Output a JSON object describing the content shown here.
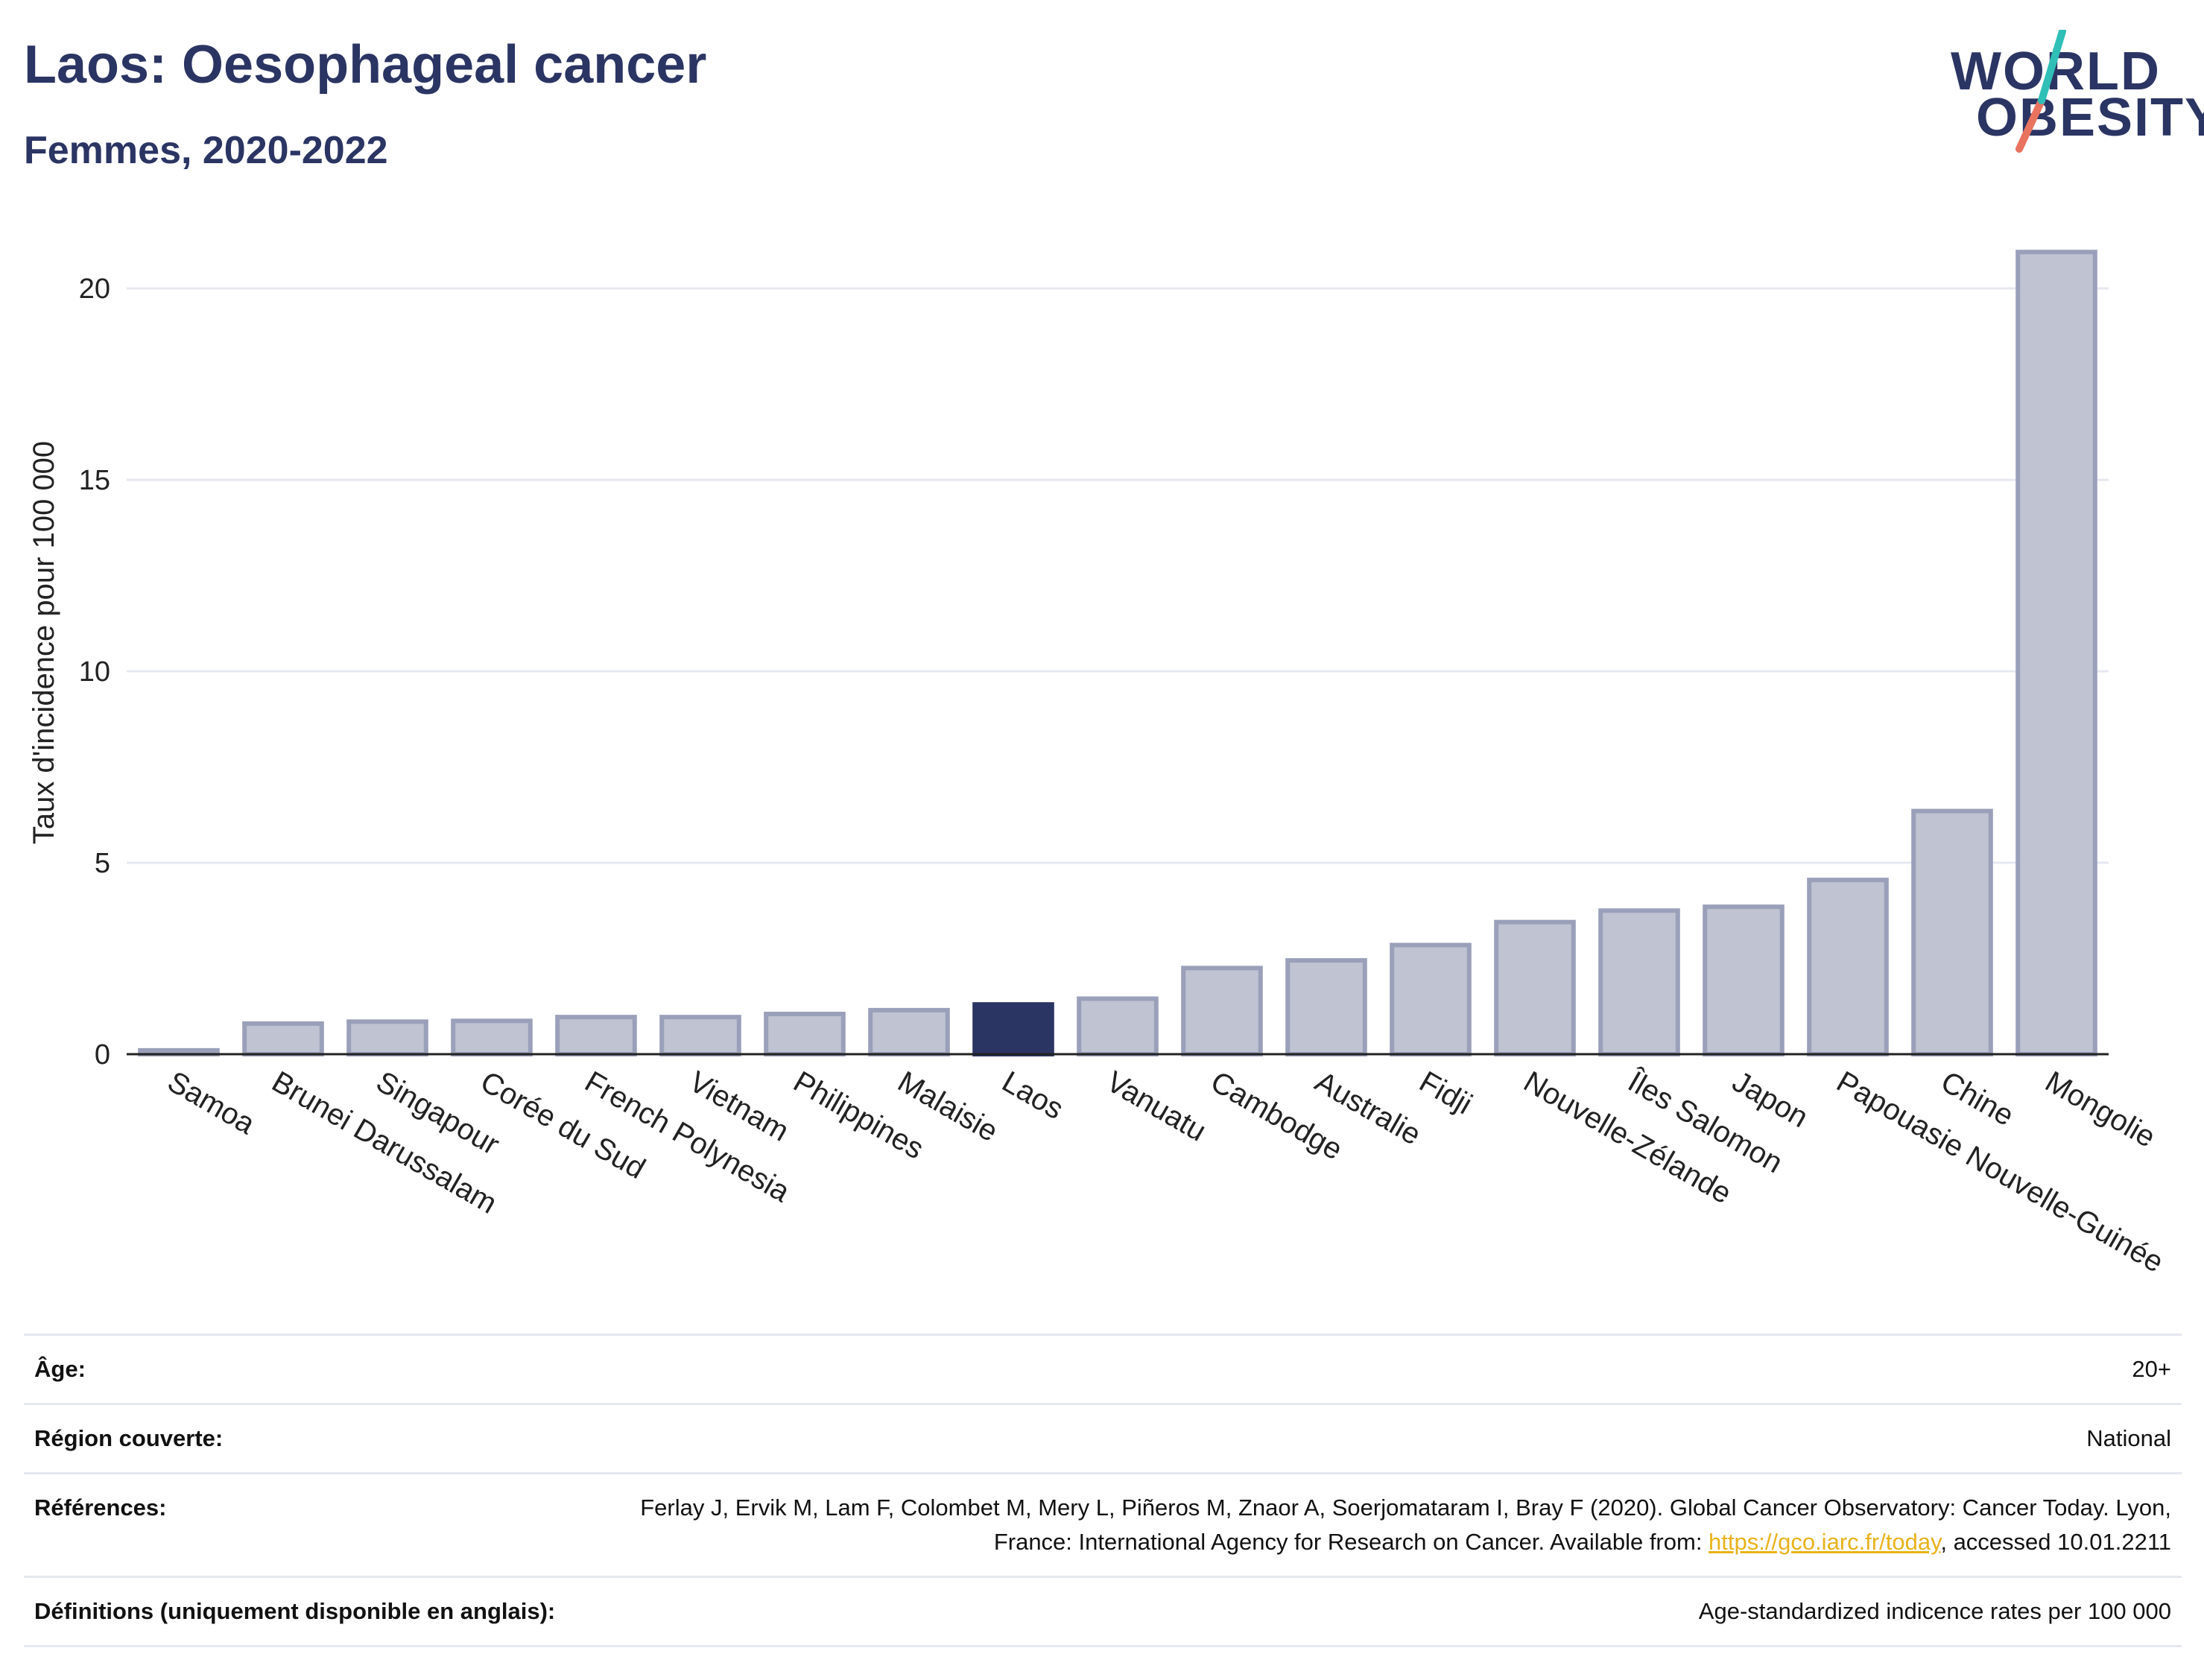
{
  "header": {
    "title": "Laos: Oesophageal cancer",
    "subtitle": "Femmes, 2020-2022",
    "logo_line1": "WORLD",
    "logo_line2": "OBESITY"
  },
  "chart_data": {
    "type": "bar",
    "ylabel": "Taux d'incidence pour 100 000",
    "ylim": [
      0,
      21.5
    ],
    "yticks": [
      0,
      5,
      10,
      15,
      20
    ],
    "grid": true,
    "highlight": "Laos",
    "categories": [
      "Samoa",
      "Brunei Darussalam",
      "Singapour",
      "Corée du Sud",
      "French Polynesia",
      "Vietnam",
      "Philippines",
      "Malaisie",
      "Laos",
      "Vanuatu",
      "Cambodge",
      "Australie",
      "Fidji",
      "Nouvelle-Zélande",
      "Îles Salomon",
      "Japon",
      "Papouasie Nouvelle-Guinée",
      "Chine",
      "Mongolie"
    ],
    "values": [
      0.1,
      0.8,
      0.85,
      0.87,
      0.97,
      0.97,
      1.05,
      1.15,
      1.3,
      1.45,
      2.25,
      2.45,
      2.85,
      3.45,
      3.75,
      3.85,
      4.55,
      6.35,
      20.95
    ],
    "colors": {
      "bar_fill": "#bfc3d2",
      "bar_stroke": "#9aa0b9",
      "highlight_fill": "#2b3563",
      "axis": "#222222",
      "grid": "#e6e8f0"
    }
  },
  "meta": {
    "age_label": "Âge:",
    "age_value": "20+",
    "region_label": "Région couverte:",
    "region_value": "National",
    "refs_label": "Références:",
    "refs_text_1": "Ferlay J, Ervik M, Lam F, Colombet M, Mery L, Piñeros M, Znaor A, Soerjomataram I, Bray F (2020). Global Cancer Observatory: Cancer Today. Lyon, France: International Agency for Research on Cancer. Available from: ",
    "refs_link": "https://gco.iarc.fr/today",
    "refs_text_2": ", accessed 10.01.2211",
    "defs_label": "Définitions (uniquement disponible en anglais):",
    "defs_value": "Age-standardized indicence rates per 100 000"
  }
}
